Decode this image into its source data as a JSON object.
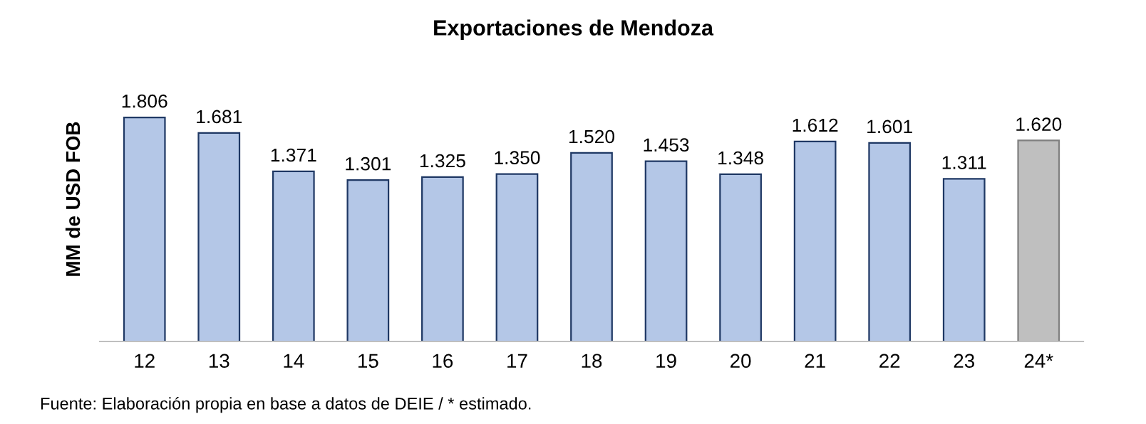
{
  "chart_data": {
    "type": "bar",
    "title": "Exportaciones de Mendoza",
    "ylabel": "MM de USD FOB",
    "categories": [
      "12",
      "13",
      "14",
      "15",
      "16",
      "17",
      "18",
      "19",
      "20",
      "21",
      "22",
      "23",
      "24*"
    ],
    "values": [
      1806,
      1681,
      1371,
      1301,
      1325,
      1350,
      1520,
      1453,
      1348,
      1612,
      1601,
      1311,
      1620
    ],
    "value_labels": [
      "1.806",
      "1.681",
      "1.371",
      "1.301",
      "1.325",
      "1.350",
      "1.520",
      "1.453",
      "1.348",
      "1.612",
      "1.601",
      "1.311",
      "1.620"
    ],
    "colors": [
      "#b4c7e7",
      "#b4c7e7",
      "#b4c7e7",
      "#b4c7e7",
      "#b4c7e7",
      "#b4c7e7",
      "#b4c7e7",
      "#b4c7e7",
      "#b4c7e7",
      "#b4c7e7",
      "#b4c7e7",
      "#b4c7e7",
      "#bfbfbf"
    ],
    "tick_labels": "x",
    "grid": false,
    "legend": false,
    "annotations": [
      "Fuente: Elaboración propia en base a datos de DEIE / * estimado."
    ]
  }
}
